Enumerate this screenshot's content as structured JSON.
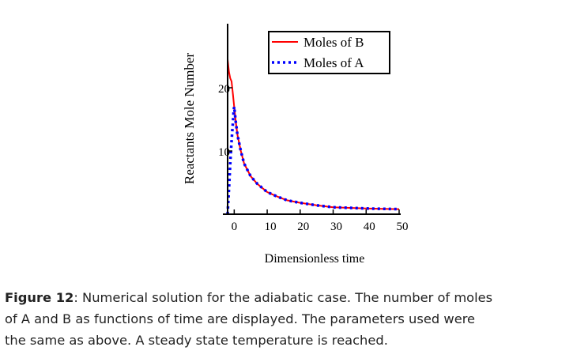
{
  "chart_data": {
    "type": "line",
    "title": "",
    "xlabel": "Dimensionless time",
    "ylabel": "Reactants Mole Number",
    "xlim": [
      -2,
      50
    ],
    "ylim": [
      0,
      29.5
    ],
    "xticks": [
      0,
      10,
      20,
      30,
      40,
      50
    ],
    "yticks": [
      10,
      20
    ],
    "grid": false,
    "legend_position": "top-right",
    "series": [
      {
        "name": "Moles of B",
        "color": "#ff0000",
        "style": "solid",
        "x": [
          -2,
          -1.6,
          -1.2,
          -0.8,
          -0.4,
          0,
          0.5,
          1,
          2,
          3,
          5,
          7,
          10,
          13,
          16,
          20,
          25,
          30,
          35,
          40,
          45,
          50
        ],
        "y": [
          24.5,
          22.5,
          21.5,
          21,
          19,
          17,
          14.5,
          12.5,
          10,
          8,
          6,
          4.8,
          3.5,
          2.8,
          2.2,
          1.8,
          1.4,
          1.1,
          1.0,
          0.9,
          0.85,
          0.8
        ]
      },
      {
        "name": "Moles of A",
        "color": "#0000ff",
        "style": "dotted",
        "x": [
          -2,
          -1.8,
          -1.6,
          -1.4,
          -1.2,
          -1,
          -0.8,
          -0.6,
          -0.4,
          -0.2,
          0,
          0.5,
          1,
          2,
          3,
          5,
          7,
          10,
          13,
          16,
          20,
          25,
          30,
          35,
          40,
          45,
          50
        ],
        "y": [
          0,
          2,
          4,
          6,
          8,
          10,
          11.5,
          13,
          14.5,
          16,
          17,
          14.5,
          12.5,
          10,
          8,
          6,
          4.8,
          3.5,
          2.8,
          2.2,
          1.8,
          1.4,
          1.1,
          1.0,
          0.9,
          0.85,
          0.8
        ]
      }
    ]
  },
  "caption": {
    "label": "Figure 12",
    "lines": [
      ": Numerical solution for the adiabatic case. The number of moles",
      "of A and B as functions of time are displayed. The parameters used were",
      "the same as above. A steady state temperature is reached."
    ]
  }
}
